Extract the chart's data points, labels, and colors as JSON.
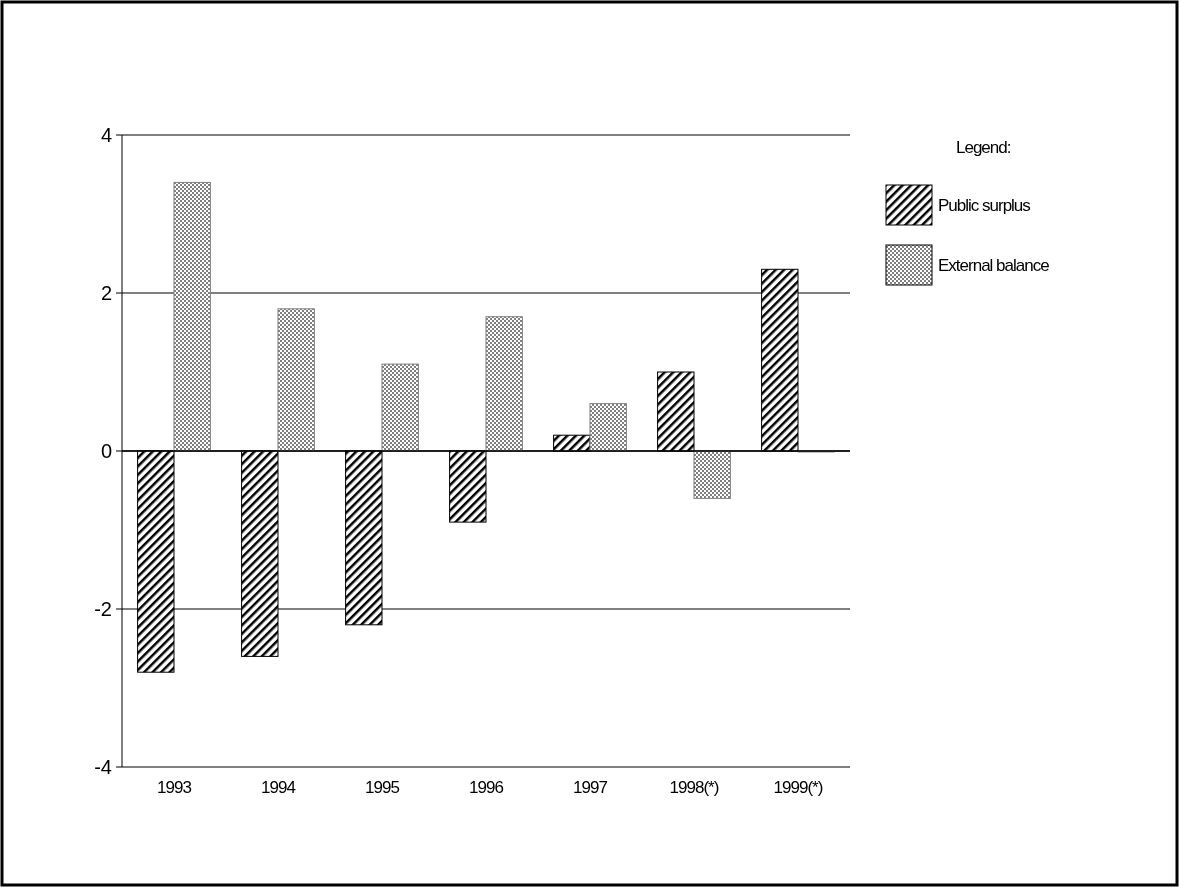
{
  "chart_data": {
    "type": "bar",
    "categories": [
      "1993",
      "1994",
      "1995",
      "1996",
      "1997",
      "1998(*)",
      "1999(*)"
    ],
    "series": [
      {
        "name": "Public surplus",
        "color": "#000000",
        "values": [
          -2.8,
          -2.6,
          -2.2,
          -0.9,
          0.2,
          1.0,
          2.3
        ]
      },
      {
        "name": "External balance",
        "color": "#808080",
        "values": [
          3.4,
          1.8,
          1.1,
          1.7,
          0.6,
          -0.6,
          0.0
        ]
      }
    ],
    "ylim": [
      -4,
      4
    ],
    "yticks": [
      -4,
      -2,
      0,
      2,
      4
    ],
    "grid": "y",
    "legend": "top right",
    "legend_title": "Legend:"
  }
}
